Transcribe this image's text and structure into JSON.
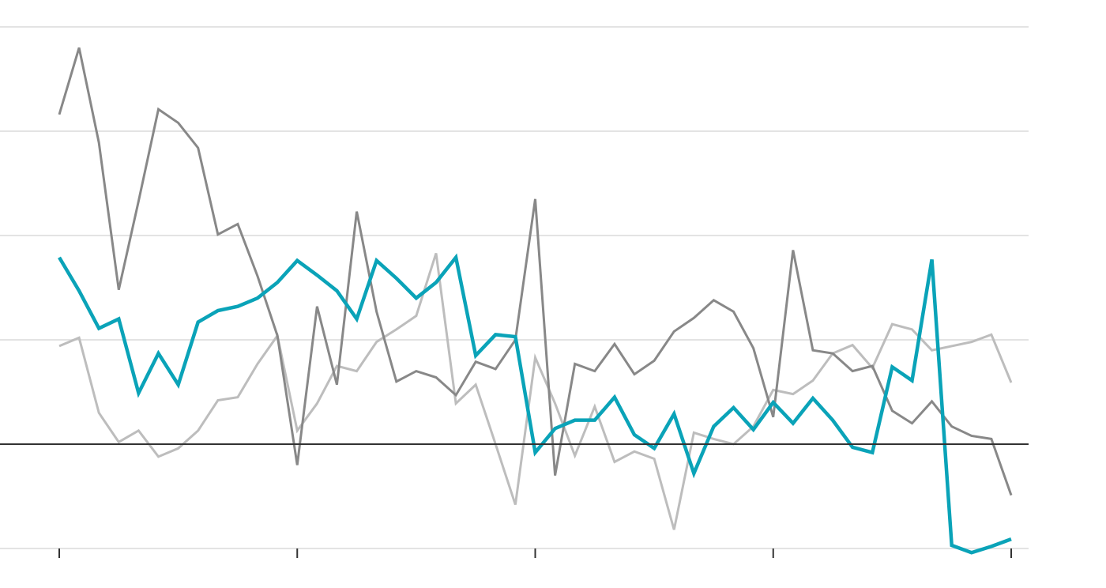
{
  "chart_data": {
    "type": "line",
    "x": [
      0,
      1,
      2,
      3,
      4,
      5,
      6,
      7,
      8,
      9,
      10,
      11,
      12,
      13,
      14,
      15,
      16,
      17,
      18,
      19,
      20,
      21,
      22,
      23,
      24,
      25,
      26,
      27,
      28,
      29,
      30,
      31,
      32,
      33,
      34,
      35,
      36,
      37,
      38,
      39,
      40,
      41,
      42,
      43,
      44,
      45,
      46,
      47,
      48
    ],
    "xlim": [
      0,
      48
    ],
    "xticks": [
      0,
      12,
      24,
      36,
      48
    ],
    "ylim": [
      -1.2,
      4.2
    ],
    "yticks": [
      -1,
      0,
      1,
      2,
      3,
      4
    ],
    "grid": true,
    "zero_line": true,
    "series": [
      {
        "color": "#bdbdbd",
        "values": [
          0.94,
          1.02,
          0.3,
          0.02,
          0.13,
          -0.12,
          -0.04,
          0.13,
          0.42,
          0.45,
          0.77,
          1.04,
          0.13,
          0.39,
          0.75,
          0.7,
          0.98,
          1.1,
          1.23,
          1.83,
          0.39,
          0.57,
          0.0,
          -0.58,
          0.83,
          0.39,
          -0.11,
          0.36,
          -0.17,
          -0.07,
          -0.14,
          -0.82,
          0.11,
          0.05,
          0.0,
          0.17,
          0.52,
          0.48,
          0.61,
          0.87,
          0.95,
          0.73,
          1.15,
          1.1,
          0.9,
          0.94,
          0.98,
          1.05,
          0.59
        ]
      },
      {
        "color": "#888888",
        "values": [
          3.16,
          3.8,
          2.89,
          1.48,
          2.33,
          3.21,
          3.08,
          2.84,
          2.01,
          2.11,
          1.61,
          1.04,
          -0.2,
          1.32,
          0.57,
          2.23,
          1.27,
          0.6,
          0.7,
          0.64,
          0.47,
          0.79,
          0.72,
          1.0,
          2.35,
          -0.3,
          0.77,
          0.7,
          0.96,
          0.67,
          0.8,
          1.08,
          1.21,
          1.38,
          1.27,
          0.92,
          0.26,
          1.86,
          0.9,
          0.87,
          0.7,
          0.75,
          0.32,
          0.2,
          0.41,
          0.17,
          0.08,
          0.05,
          -0.49
        ]
      },
      {
        "color": "#0aa3b8",
        "values": [
          1.79,
          1.47,
          1.11,
          1.2,
          0.49,
          0.87,
          0.57,
          1.17,
          1.28,
          1.32,
          1.4,
          1.55,
          1.76,
          1.62,
          1.47,
          1.2,
          1.76,
          1.59,
          1.4,
          1.55,
          1.79,
          0.85,
          1.05,
          1.03,
          -0.08,
          0.15,
          0.23,
          0.23,
          0.45,
          0.09,
          -0.04,
          0.29,
          -0.28,
          0.17,
          0.35,
          0.14,
          0.4,
          0.2,
          0.44,
          0.23,
          -0.03,
          -0.08,
          0.74,
          0.61,
          1.77,
          -0.97,
          -1.04,
          -0.98,
          -0.91
        ]
      }
    ]
  }
}
